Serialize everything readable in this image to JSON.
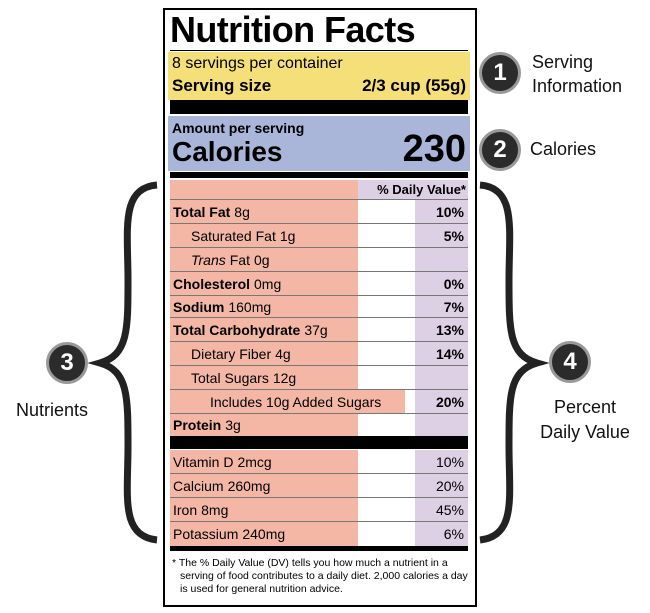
{
  "label": {
    "title": "Nutrition Facts",
    "servings": "8 servings per container",
    "serving_size": {
      "label": "Serving size",
      "value": "2/3 cup (55g)"
    },
    "amount_per_serving": "Amount per serving",
    "calories": {
      "label": "Calories",
      "value": 230
    },
    "dv_header": "% Daily Value*",
    "nutrients": [
      {
        "name": "Total Fat",
        "amount": "8g",
        "dv": "10%"
      },
      {
        "name": "Saturated Fat",
        "amount": "1g",
        "dv": "5%"
      },
      {
        "italic": "Trans",
        "name": "Fat",
        "amount": "0g"
      },
      {
        "name": "Cholesterol",
        "amount": "0mg",
        "dv": "0%"
      },
      {
        "name": "Sodium",
        "amount": "160mg",
        "dv": "7%"
      },
      {
        "name": "Total Carbohydrate",
        "amount": "37g",
        "dv": "13%"
      },
      {
        "name": "Dietary Fiber",
        "amount": "4g",
        "dv": "14%"
      },
      {
        "name": "Total Sugars",
        "amount": "12g"
      },
      {
        "name": "Includes 10g Added Sugars",
        "dv": "20%"
      },
      {
        "name": "Protein",
        "amount": "3g"
      }
    ],
    "vitamins": [
      {
        "name": "Vitamin D",
        "amount": "2mcg",
        "dv": "10%"
      },
      {
        "name": "Calcium",
        "amount": "260mg",
        "dv": "20%"
      },
      {
        "name": "Iron",
        "amount": "8mg",
        "dv": "45%"
      },
      {
        "name": "Potassium",
        "amount": "240mg",
        "dv": "6%"
      }
    ],
    "footnote": "* The % Daily Value (DV) tells you how much a nutrient in a serving of food contributes to a daily diet. 2,000 calories a day is used for general nutrition advice."
  },
  "annotations": [
    {
      "number": 1,
      "lines": [
        "Serving",
        "Information"
      ]
    },
    {
      "number": 2,
      "lines": [
        "Calories"
      ]
    },
    {
      "number": 3,
      "lines": [
        "Nutrients"
      ]
    },
    {
      "number": 4,
      "lines": [
        "Percent",
        "Daily Value"
      ]
    }
  ]
}
